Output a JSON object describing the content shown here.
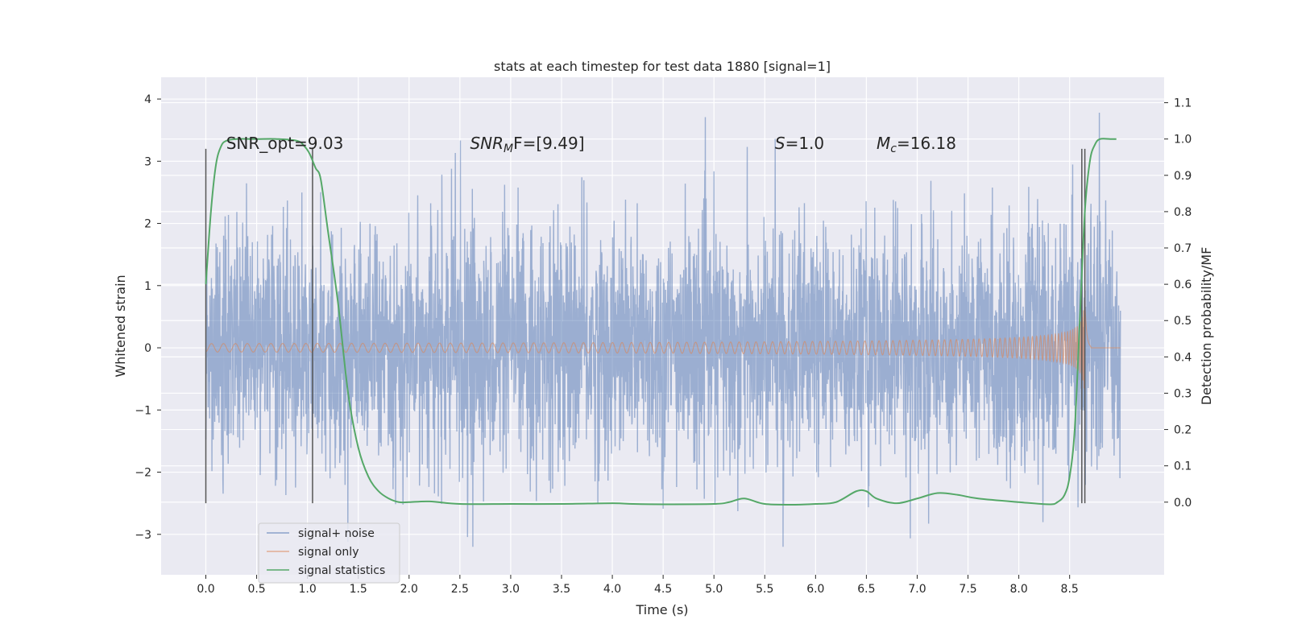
{
  "chart_data": {
    "type": "line",
    "title": "stats at each timestep for test data 1880 [signal=1]",
    "xlabel": "Time (s)",
    "ylabel": "Whitened strain",
    "ylabel_right": "Detection probability/MF",
    "xlim": [
      -0.44,
      9.43
    ],
    "ylim": [
      -3.65,
      4.35
    ],
    "ylim_right": [
      -0.2,
      1.17
    ],
    "xticks": [
      "0.0",
      "0.5",
      "1.0",
      "1.5",
      "2.0",
      "2.5",
      "3.0",
      "3.5",
      "4.0",
      "4.5",
      "5.0",
      "5.5",
      "6.0",
      "6.5",
      "7.0",
      "7.5",
      "8.0",
      "8.5"
    ],
    "yticks": [
      "4",
      "3",
      "2",
      "1",
      "0",
      "−1",
      "−2",
      "−3"
    ],
    "yticks_right": [
      "1.1",
      "1.0",
      "0.9",
      "0.8",
      "0.7",
      "0.6",
      "0.5",
      "0.4",
      "0.3",
      "0.2",
      "0.1",
      "0.0"
    ],
    "grid": true,
    "legend_position": "lower-left",
    "series": [
      {
        "name": "signal+ noise",
        "color": "#4c72b0",
        "axis": "left",
        "description": "whitened noisy strain, amplitude about 1.2 rms with spikes up to about 4.0",
        "x_range": [
          0.0,
          9.0
        ],
        "envelope": [
          1.3,
          1.3
        ]
      },
      {
        "name": "signal only",
        "color": "#dd8452",
        "axis": "left",
        "description": "chirp signal growing in amplitude until merger near 8.65 s",
        "x_range": [
          0.0,
          9.0
        ],
        "merger_time": 8.65,
        "peak_amplitude": 1.0
      },
      {
        "name": "signal statistics",
        "color": "#55a868",
        "axis": "right",
        "x": [
          0.0,
          0.05,
          0.1,
          0.15,
          0.2,
          0.3,
          0.5,
          0.7,
          0.9,
          0.97,
          1.02,
          1.08,
          1.13,
          1.2,
          1.3,
          1.4,
          1.5,
          1.6,
          1.7,
          1.8,
          1.9,
          2.0,
          2.2,
          2.5,
          3.0,
          3.5,
          4.0,
          4.2,
          4.5,
          5.0,
          5.15,
          5.3,
          5.5,
          5.8,
          6.0,
          6.2,
          6.4,
          6.5,
          6.6,
          6.8,
          7.0,
          7.2,
          7.4,
          7.6,
          8.0,
          8.3,
          8.38,
          8.45,
          8.5,
          8.55,
          8.6,
          8.65,
          8.7,
          8.75,
          8.8,
          8.9,
          8.96
        ],
        "values": [
          0.6,
          0.8,
          0.93,
          0.98,
          0.995,
          1.0,
          1.0,
          1.0,
          0.995,
          0.98,
          0.96,
          0.92,
          0.89,
          0.75,
          0.55,
          0.3,
          0.15,
          0.07,
          0.03,
          0.01,
          0.0,
          0.0,
          0.002,
          -0.005,
          -0.005,
          -0.005,
          -0.003,
          -0.005,
          -0.006,
          -0.005,
          0.0,
          0.01,
          -0.005,
          -0.007,
          -0.005,
          0.0,
          0.03,
          0.03,
          0.01,
          -0.003,
          0.01,
          0.025,
          0.02,
          0.01,
          0.0,
          -0.006,
          0.0,
          0.02,
          0.07,
          0.2,
          0.5,
          0.8,
          0.94,
          0.985,
          1.0,
          1.0,
          1.0
        ]
      }
    ],
    "vlines": [
      {
        "x": 0.0,
        "y_range": [
          -2.5,
          3.2
        ]
      },
      {
        "x": 1.05,
        "y_range": [
          -2.5,
          3.2
        ]
      },
      {
        "x": 8.62,
        "y_range": [
          -2.5,
          3.2
        ]
      },
      {
        "x": 8.65,
        "y_range": [
          -2.5,
          3.2
        ]
      }
    ],
    "annotations": [
      {
        "text": "SNR_opt=9.03",
        "x": 0.2,
        "y": 3.2
      },
      {
        "text_main": "SNR",
        "text_sub": "M",
        "text_rest": "F=[9.49]",
        "x": 2.6,
        "y": 3.2
      },
      {
        "text_main": "S",
        "text_rest": "=1.0",
        "x": 5.6,
        "y": 3.2
      },
      {
        "text_main": "M",
        "text_sub": "c",
        "text_rest": "=16.18",
        "x": 6.6,
        "y": 3.2
      }
    ]
  }
}
